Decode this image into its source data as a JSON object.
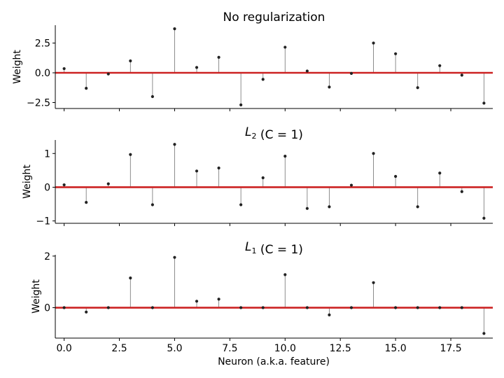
{
  "figure": {
    "xlabel": "Neuron (a.k.a. feature)"
  },
  "style": {
    "baseline_color": "#cc2222",
    "stem_color": "#808080",
    "marker_color": "#222222",
    "axis_color": "#000000"
  },
  "chart_data": [
    {
      "type": "stem",
      "title": "No regularization",
      "title_parts": [
        {
          "text": "No regularization",
          "sub": ""
        }
      ],
      "ylabel": "Weight",
      "ylim": [
        -3.0,
        4.0
      ],
      "yticks": [
        -2.5,
        0.0,
        2.5
      ],
      "ytick_labels": [
        "−2.5",
        "0.0",
        "2.5"
      ],
      "xlim": [
        -0.4,
        19.4
      ],
      "x": [
        0,
        1,
        2,
        3,
        4,
        5,
        6,
        7,
        8,
        9,
        10,
        11,
        12,
        13,
        14,
        15,
        16,
        17,
        18,
        19
      ],
      "values": [
        0.35,
        -1.3,
        -0.1,
        1.0,
        -2.0,
        3.7,
        0.45,
        1.3,
        -2.7,
        -0.55,
        2.15,
        0.15,
        -1.2,
        -0.05,
        2.5,
        1.6,
        -1.25,
        0.6,
        -0.2,
        -2.55
      ]
    },
    {
      "type": "stem",
      "title": "L2 (C = 1)",
      "title_parts": [
        {
          "text": "L",
          "sub": "2"
        },
        {
          "text": " (C = 1)",
          "sub": ""
        }
      ],
      "ylabel": "Weight",
      "ylim": [
        -1.07,
        1.4
      ],
      "yticks": [
        -1,
        0,
        1
      ],
      "ytick_labels": [
        "−1",
        "0",
        "1"
      ],
      "xlim": [
        -0.4,
        19.4
      ],
      "x": [
        0,
        1,
        2,
        3,
        4,
        5,
        6,
        7,
        8,
        9,
        10,
        11,
        12,
        13,
        14,
        15,
        16,
        17,
        18,
        19
      ],
      "values": [
        0.07,
        -0.45,
        0.1,
        0.97,
        -0.52,
        1.27,
        0.48,
        0.57,
        -0.52,
        0.28,
        0.92,
        -0.63,
        -0.58,
        0.06,
        1.0,
        0.32,
        -0.58,
        0.42,
        -0.13,
        -0.92
      ]
    },
    {
      "type": "stem",
      "title": "L1 (C = 1)",
      "title_parts": [
        {
          "text": "L",
          "sub": "1"
        },
        {
          "text": " (C = 1)",
          "sub": ""
        }
      ],
      "ylabel": "Weight",
      "ylim": [
        -1.18,
        2.05
      ],
      "yticks": [
        0,
        2
      ],
      "ytick_labels": [
        "0",
        "2"
      ],
      "xlim": [
        -0.4,
        19.4
      ],
      "xticks": [
        0.0,
        2.5,
        5.0,
        7.5,
        10.0,
        12.5,
        15.0,
        17.5
      ],
      "xtick_labels": [
        "0.0",
        "2.5",
        "5.0",
        "7.5",
        "10.0",
        "12.5",
        "15.0",
        "17.5"
      ],
      "x": [
        0,
        1,
        2,
        3,
        4,
        5,
        6,
        7,
        8,
        9,
        10,
        11,
        12,
        13,
        14,
        15,
        16,
        17,
        18,
        19
      ],
      "values": [
        0,
        -0.17,
        0,
        1.15,
        0,
        1.95,
        0.25,
        0.33,
        0,
        0,
        1.28,
        0,
        -0.28,
        0,
        0.97,
        0,
        0,
        0,
        0,
        -1.0
      ]
    }
  ]
}
